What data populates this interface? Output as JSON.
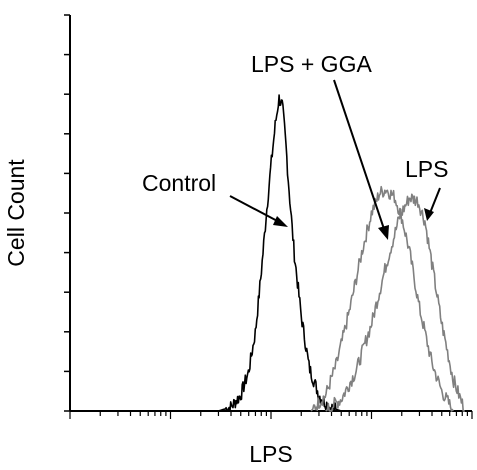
{
  "chart_data": {
    "type": "line",
    "xlabel": "LPS",
    "ylabel": "Cell Count",
    "x_scale": "log",
    "xlim": [
      1,
      10000
    ],
    "ylim": [
      0,
      100
    ],
    "grid": false,
    "annotations": [
      {
        "text": "Control",
        "series": "Control"
      },
      {
        "text": "LPS + GGA",
        "series": "LPS + GGA"
      },
      {
        "text": "LPS",
        "series": "LPS"
      }
    ],
    "series": [
      {
        "name": "Control",
        "color": "#000000",
        "points": [
          [
            30,
            0
          ],
          [
            40,
            1
          ],
          [
            50,
            4
          ],
          [
            60,
            10
          ],
          [
            70,
            20
          ],
          [
            80,
            35
          ],
          [
            90,
            50
          ],
          [
            100,
            62
          ],
          [
            110,
            72
          ],
          [
            120,
            79
          ],
          [
            130,
            77
          ],
          [
            140,
            68
          ],
          [
            150,
            57
          ],
          [
            170,
            40
          ],
          [
            200,
            24
          ],
          [
            240,
            11
          ],
          [
            300,
            4
          ],
          [
            380,
            1
          ],
          [
            500,
            0
          ]
        ]
      },
      {
        "name": "LPS + GGA",
        "color": "#808080",
        "points": [
          [
            250,
            0
          ],
          [
            350,
            4
          ],
          [
            450,
            12
          ],
          [
            600,
            25
          ],
          [
            800,
            40
          ],
          [
            1000,
            50
          ],
          [
            1200,
            55
          ],
          [
            1400,
            56
          ],
          [
            1700,
            54
          ],
          [
            2000,
            49
          ],
          [
            2400,
            40
          ],
          [
            3000,
            26
          ],
          [
            4000,
            12
          ],
          [
            5000,
            5
          ],
          [
            6500,
            0
          ]
        ]
      },
      {
        "name": "LPS",
        "color": "#808080",
        "points": [
          [
            350,
            0
          ],
          [
            500,
            3
          ],
          [
            700,
            10
          ],
          [
            1000,
            22
          ],
          [
            1400,
            37
          ],
          [
            1900,
            49
          ],
          [
            2400,
            54
          ],
          [
            2900,
            53
          ],
          [
            3400,
            48
          ],
          [
            4000,
            37
          ],
          [
            5000,
            22
          ],
          [
            6500,
            8
          ],
          [
            8500,
            0
          ]
        ]
      }
    ]
  }
}
